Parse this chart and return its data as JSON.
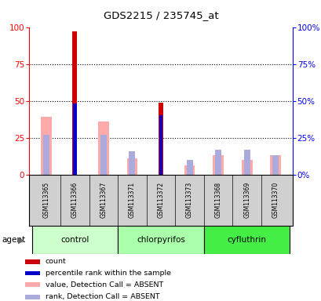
{
  "title": "GDS2215 / 235745_at",
  "samples": [
    "GSM113365",
    "GSM113366",
    "GSM113367",
    "GSM113371",
    "GSM113372",
    "GSM113373",
    "GSM113368",
    "GSM113369",
    "GSM113370"
  ],
  "groups": [
    {
      "name": "control",
      "indices": [
        0,
        1,
        2
      ],
      "color": "#ccffcc"
    },
    {
      "name": "chlorpyrifos",
      "indices": [
        3,
        4,
        5
      ],
      "color": "#aaffaa"
    },
    {
      "name": "cyfluthrin",
      "indices": [
        6,
        7,
        8
      ],
      "color": "#44ee44"
    }
  ],
  "count_red": [
    0,
    97,
    0,
    0,
    49,
    0,
    0,
    0,
    0
  ],
  "rank_blue": [
    0,
    48,
    0,
    0,
    40,
    0,
    0,
    0,
    0
  ],
  "value_pink": [
    39,
    0,
    36,
    11,
    0,
    6,
    13,
    10,
    13
  ],
  "rank_lightblue": [
    27,
    0,
    27,
    16,
    0,
    10,
    17,
    17,
    13
  ],
  "ylim": [
    0,
    100
  ],
  "yticks": [
    0,
    25,
    50,
    75,
    100
  ],
  "red_color": "#cc0000",
  "blue_color": "#0000cc",
  "pink_color": "#ffaaaa",
  "lightblue_color": "#aaaadd",
  "plot_bg": "#ffffff",
  "legend_items": [
    "count",
    "percentile rank within the sample",
    "value, Detection Call = ABSENT",
    "rank, Detection Call = ABSENT"
  ],
  "legend_colors": [
    "#cc0000",
    "#0000cc",
    "#ffaaaa",
    "#aaaadd"
  ]
}
